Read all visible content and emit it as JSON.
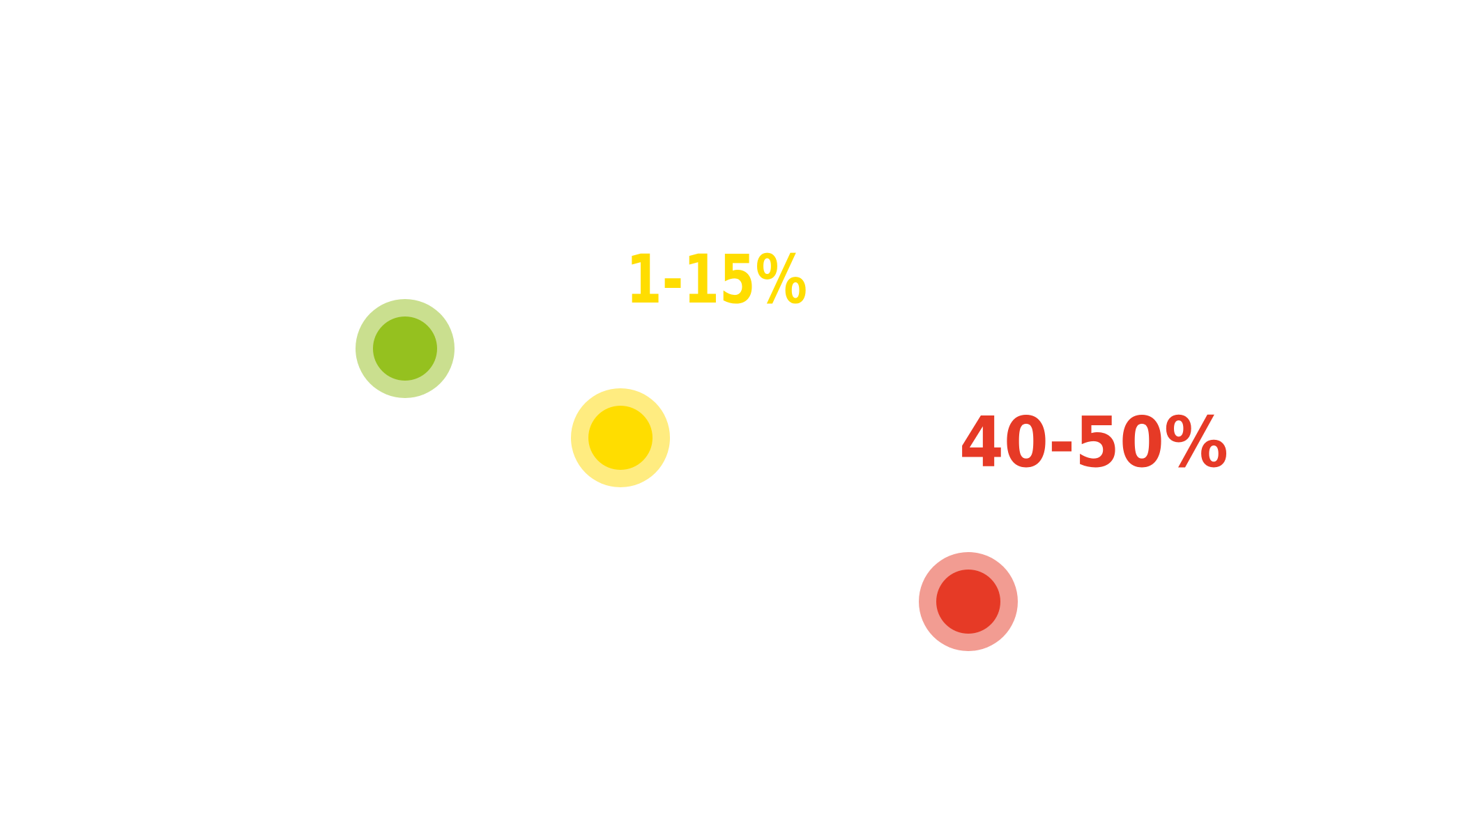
{
  "labels": [
    {
      "text": "1-15%"
    },
    {
      "text": "40-50%"
    }
  ]
}
